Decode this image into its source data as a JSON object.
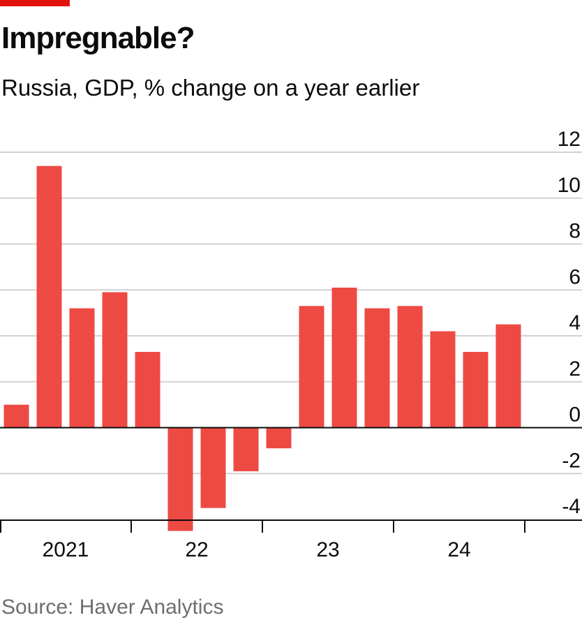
{
  "colors": {
    "accent": "#e3120b",
    "bar": "#ee4a44",
    "grid": "#d2d2d2",
    "axis": "#0c0c0c",
    "source_text": "#6e6e6e"
  },
  "chart_data": {
    "type": "bar",
    "title": "Impregnable?",
    "subtitle": "Russia, GDP, % change on a year earlier",
    "source": "Source: Haver Analytics",
    "categories": [
      "2021 Q1",
      "2021 Q2",
      "2021 Q3",
      "2021 Q4",
      "2022 Q1",
      "2022 Q2",
      "2022 Q3",
      "2022 Q4",
      "2023 Q1",
      "2023 Q2",
      "2023 Q3",
      "2023 Q4",
      "2024 Q1",
      "2024 Q2",
      "2024 Q3",
      "2024 Q4"
    ],
    "values": [
      1.0,
      11.4,
      5.2,
      5.9,
      3.3,
      -4.5,
      -3.5,
      -1.9,
      -0.9,
      5.3,
      6.1,
      5.2,
      5.3,
      4.2,
      3.3,
      4.5
    ],
    "year_labels": [
      "2021",
      "22",
      "23",
      "24"
    ],
    "yticks": [
      12,
      10,
      8,
      6,
      4,
      2,
      0,
      -2,
      -4
    ],
    "ytick_labels": [
      "12",
      "10",
      "8",
      "6",
      "4",
      "2",
      "0",
      "-2",
      "-4"
    ],
    "ylim": [
      -4,
      12
    ],
    "xlabel": "",
    "ylabel": "",
    "grid": true,
    "y_axis_side": "right"
  }
}
